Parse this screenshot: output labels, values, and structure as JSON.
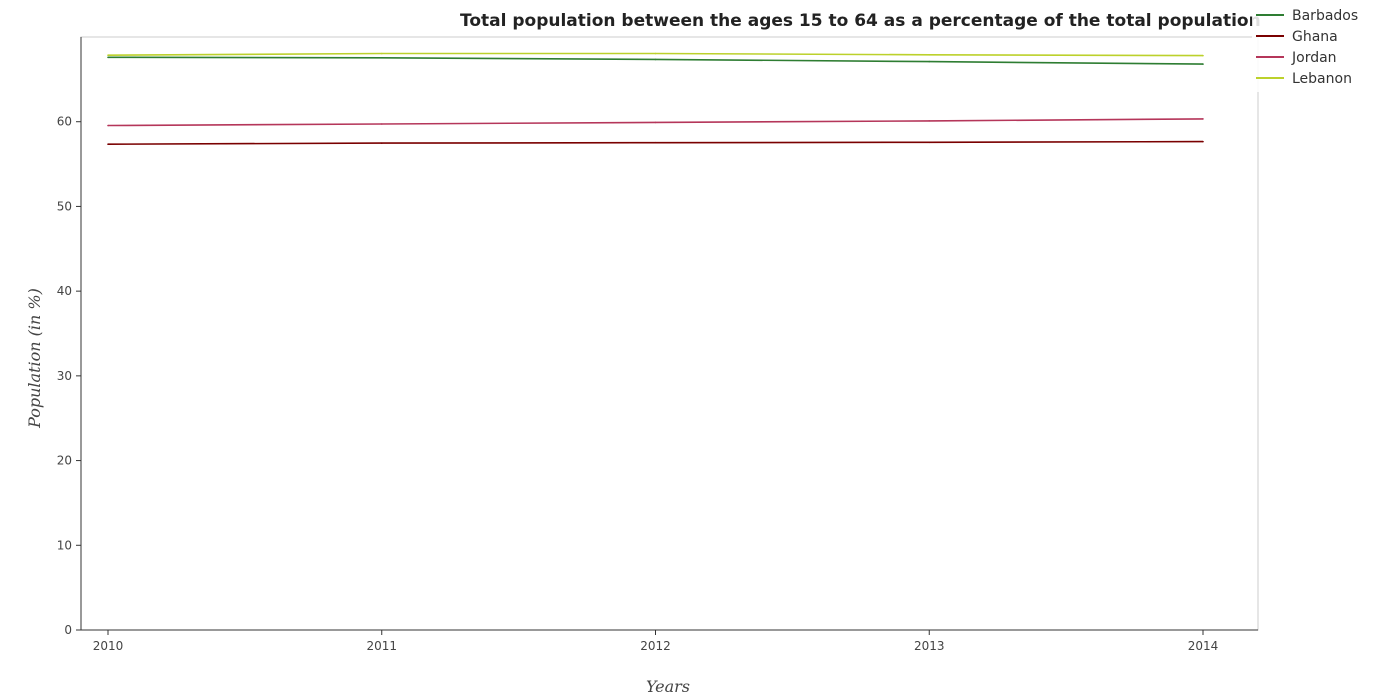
{
  "chart_data": {
    "type": "line",
    "title": "Total population between the ages 15 to 64 as a percentage of the total population",
    "xlabel": "Years",
    "ylabel": "Population (in %)",
    "categories": [
      "2010",
      "2011",
      "2012",
      "2013",
      "2014"
    ],
    "ylim": [
      0,
      70
    ],
    "yticks": [
      0,
      10,
      20,
      30,
      40,
      50,
      60
    ],
    "grid": false,
    "legend_position": "top-right",
    "series": [
      {
        "name": "Barbados",
        "color": "#2e7d32",
        "values": [
          67.6,
          67.55,
          67.35,
          67.1,
          66.8
        ]
      },
      {
        "name": "Ghana",
        "color": "#7a0000",
        "values": [
          57.35,
          57.47,
          57.52,
          57.57,
          57.65
        ]
      },
      {
        "name": "Jordan",
        "color": "#b5365a",
        "values": [
          59.55,
          59.73,
          59.92,
          60.1,
          60.33
        ]
      },
      {
        "name": "Lebanon",
        "color": "#bcd12b",
        "values": [
          67.85,
          68.05,
          68.05,
          67.9,
          67.8
        ]
      }
    ]
  }
}
